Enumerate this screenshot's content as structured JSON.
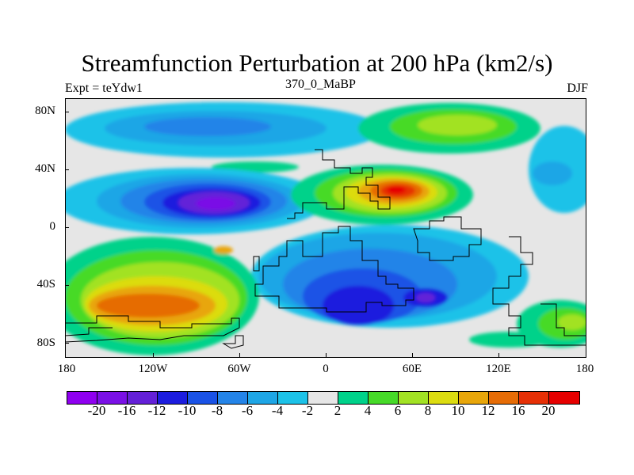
{
  "title": "Streamfunction Perturbation at 200 hPa (km2/s)",
  "left_label": "Expt = teYdw1",
  "center_label": "370_0_MaBP",
  "right_label": "DJF",
  "lat_labels": [
    "80N",
    "40N",
    "0",
    "40S",
    "80S"
  ],
  "lon_labels": [
    "180",
    "120W",
    "60W",
    "0",
    "60E",
    "120E",
    "180"
  ],
  "colors": {
    "ocean_bg": "#e6e6e6",
    "palette": [
      "#8f00f0",
      "#7a10e6",
      "#6420d8",
      "#1c1cde",
      "#1a52e6",
      "#2484e8",
      "#1ea6e6",
      "#1cc2e8",
      "#e6e6e6",
      "#00d28a",
      "#46da28",
      "#a2e224",
      "#dcdc10",
      "#e8a60a",
      "#e66c06",
      "#e63006",
      "#e60000"
    ]
  },
  "legend_labels": [
    "-20",
    "-16",
    "-12",
    "-10",
    "-8",
    "-6",
    "-4",
    "-2",
    "2",
    "4",
    "6",
    "8",
    "10",
    "12",
    "16",
    "20"
  ]
}
